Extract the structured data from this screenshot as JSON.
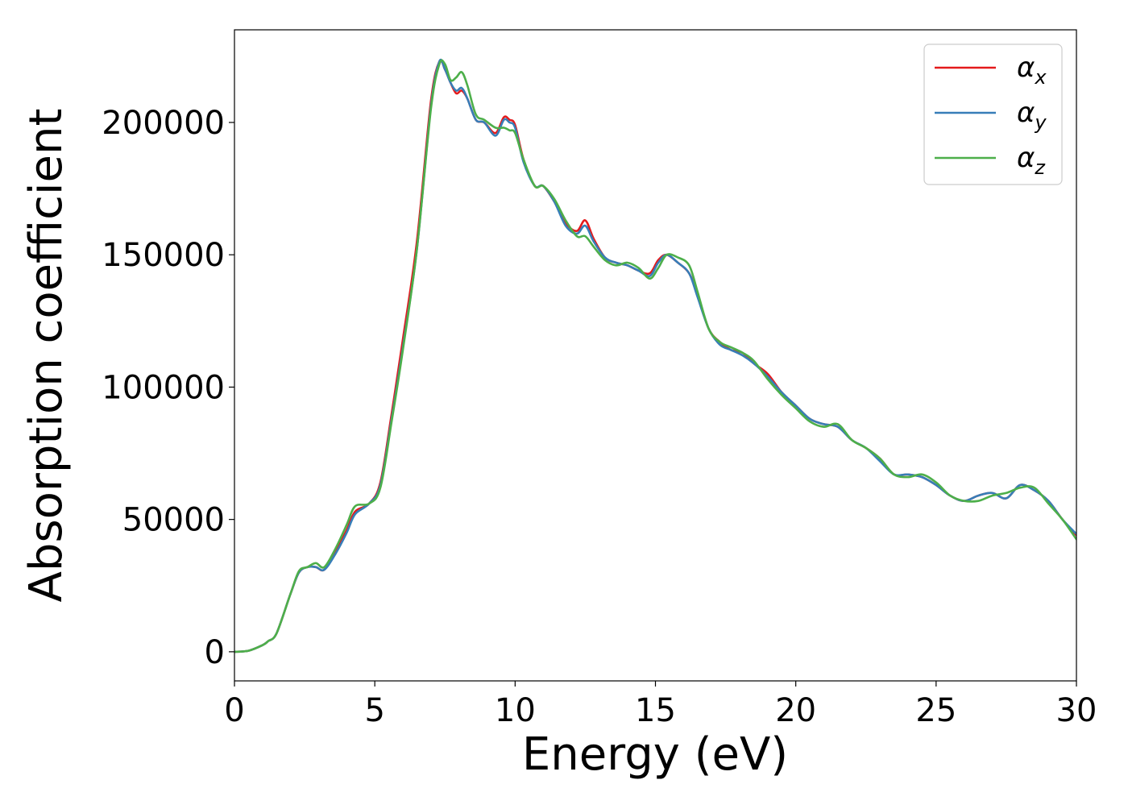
{
  "chart_data": {
    "type": "line",
    "title": "",
    "xlabel": "Energy (eV)",
    "ylabel": "Absorption coefficient",
    "xlim": [
      0,
      30
    ],
    "ylim": [
      -11000,
      235000
    ],
    "xticks": [
      0,
      5,
      10,
      15,
      20,
      25,
      30
    ],
    "yticks": [
      0,
      50000,
      100000,
      150000,
      200000
    ],
    "xtick_labels": [
      "0",
      "5",
      "10",
      "15",
      "20",
      "25",
      "30"
    ],
    "ytick_labels": [
      "0",
      "50000",
      "100000",
      "150000",
      "200000"
    ],
    "grid": false,
    "legend_position": "top-right",
    "series": [
      {
        "name": "αx",
        "symbol": "α",
        "subscript": "x",
        "color": "#e41a1c",
        "x": [
          0,
          0.5,
          1.0,
          1.2,
          1.5,
          2.0,
          2.3,
          2.6,
          2.9,
          3.2,
          3.6,
          4.0,
          4.3,
          4.8,
          5.2,
          5.6,
          6.0,
          6.5,
          7.0,
          7.3,
          7.5,
          7.7,
          7.9,
          8.1,
          8.3,
          8.6,
          8.9,
          9.3,
          9.6,
          9.8,
          10.0,
          10.3,
          10.7,
          11.0,
          11.4,
          11.8,
          12.2,
          12.5,
          12.8,
          13.2,
          13.6,
          14.0,
          14.4,
          14.8,
          15.1,
          15.4,
          15.8,
          16.2,
          16.5,
          16.9,
          17.3,
          17.7,
          18.1,
          18.5,
          19.0,
          19.5,
          20.0,
          20.5,
          21.0,
          21.5,
          22.0,
          22.5,
          23.0,
          23.5,
          24.0,
          24.5,
          25.0,
          25.5,
          26.0,
          26.5,
          27.0,
          27.5,
          28.0,
          28.5,
          29.0,
          29.5,
          30.0
        ],
        "values": [
          0,
          400,
          2500,
          4000,
          7000,
          22000,
          30000,
          32000,
          32000,
          31000,
          38000,
          46000,
          53000,
          56000,
          64000,
          90000,
          118000,
          155000,
          208000,
          223000,
          220000,
          215000,
          211000,
          212000,
          209000,
          201000,
          200000,
          196000,
          202000,
          201000,
          199000,
          186000,
          176000,
          176000,
          170000,
          162000,
          159000,
          163000,
          156000,
          149000,
          147000,
          146000,
          144000,
          143000,
          148000,
          150000,
          147000,
          143000,
          135000,
          122000,
          117000,
          114000,
          113000,
          109000,
          105000,
          98000,
          93000,
          88000,
          86000,
          85000,
          80000,
          77000,
          73000,
          67000,
          67000,
          66000,
          63000,
          59000,
          57000,
          59000,
          60000,
          58000,
          63000,
          61000,
          57000,
          50000,
          44000
        ]
      },
      {
        "name": "αy",
        "symbol": "α",
        "subscript": "y",
        "color": "#377eb8",
        "x": [
          0,
          0.5,
          1.0,
          1.2,
          1.5,
          2.0,
          2.3,
          2.6,
          2.9,
          3.2,
          3.6,
          4.0,
          4.3,
          4.8,
          5.2,
          5.6,
          6.0,
          6.5,
          7.0,
          7.3,
          7.5,
          7.7,
          7.9,
          8.1,
          8.3,
          8.6,
          8.9,
          9.3,
          9.6,
          9.8,
          10.0,
          10.3,
          10.7,
          11.0,
          11.4,
          11.8,
          12.2,
          12.5,
          12.8,
          13.2,
          13.6,
          14.0,
          14.4,
          14.8,
          15.1,
          15.4,
          15.8,
          16.2,
          16.5,
          16.9,
          17.3,
          17.7,
          18.1,
          18.5,
          19.0,
          19.5,
          20.0,
          20.5,
          21.0,
          21.5,
          22.0,
          22.5,
          23.0,
          23.5,
          24.0,
          24.5,
          25.0,
          25.5,
          26.0,
          26.5,
          27.0,
          27.5,
          28.0,
          28.5,
          29.0,
          29.5,
          30.0
        ],
        "values": [
          0,
          400,
          2500,
          4000,
          7000,
          22000,
          30000,
          32000,
          32000,
          31000,
          37000,
          45000,
          52000,
          56000,
          63000,
          88000,
          115000,
          152000,
          206000,
          223000,
          220000,
          215000,
          212000,
          213000,
          209000,
          201000,
          200000,
          195000,
          201000,
          200000,
          198000,
          185000,
          176000,
          176000,
          170000,
          161000,
          158000,
          161000,
          155000,
          149000,
          147000,
          146000,
          144000,
          142000,
          147000,
          150000,
          147000,
          143000,
          134000,
          122000,
          116000,
          114000,
          112000,
          109000,
          104000,
          98000,
          93000,
          88000,
          86000,
          85000,
          80000,
          77000,
          72000,
          67000,
          67000,
          66000,
          63000,
          59000,
          57000,
          59000,
          60000,
          58000,
          63000,
          61000,
          57000,
          50000,
          44500
        ]
      },
      {
        "name": "αz",
        "symbol": "α",
        "subscript": "z",
        "color": "#4daf4a",
        "x": [
          0,
          0.5,
          1.0,
          1.2,
          1.5,
          2.0,
          2.3,
          2.6,
          2.9,
          3.2,
          3.6,
          4.0,
          4.3,
          4.8,
          5.2,
          5.6,
          6.0,
          6.5,
          7.0,
          7.3,
          7.5,
          7.7,
          7.9,
          8.1,
          8.3,
          8.6,
          8.9,
          9.3,
          9.6,
          9.8,
          10.0,
          10.3,
          10.7,
          11.0,
          11.4,
          11.8,
          12.2,
          12.5,
          12.8,
          13.2,
          13.6,
          14.0,
          14.4,
          14.8,
          15.1,
          15.4,
          15.8,
          16.2,
          16.5,
          16.9,
          17.3,
          17.7,
          18.1,
          18.5,
          19.0,
          19.5,
          20.0,
          20.5,
          21.0,
          21.5,
          22.0,
          22.5,
          23.0,
          23.5,
          24.0,
          24.5,
          25.0,
          25.5,
          26.0,
          26.5,
          27.0,
          27.5,
          28.0,
          28.5,
          29.0,
          29.5,
          30.0
        ],
        "values": [
          0,
          400,
          2500,
          4000,
          7000,
          22000,
          30500,
          32000,
          33500,
          32000,
          39000,
          48000,
          55000,
          56000,
          62000,
          87000,
          114000,
          152000,
          205000,
          222000,
          222000,
          216000,
          217000,
          219000,
          214000,
          203000,
          201000,
          198000,
          198000,
          197000,
          196000,
          186000,
          176000,
          176000,
          171000,
          163000,
          157000,
          157000,
          153000,
          148000,
          146000,
          147000,
          145000,
          141000,
          145000,
          150000,
          149000,
          146000,
          136000,
          122000,
          117000,
          115000,
          113000,
          110000,
          103000,
          97000,
          92000,
          87000,
          85000,
          86000,
          80000,
          77000,
          73000,
          67000,
          66000,
          67000,
          64000,
          59000,
          57000,
          57000,
          59000,
          60000,
          62000,
          62000,
          56000,
          50000,
          42500
        ]
      }
    ]
  }
}
